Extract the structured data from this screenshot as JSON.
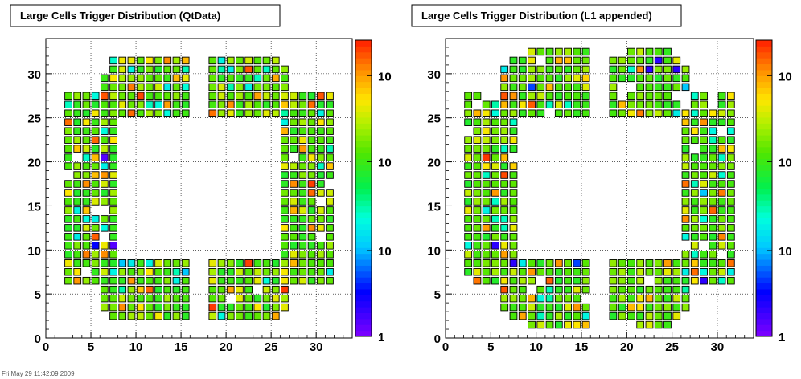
{
  "chart_data": [
    {
      "type": "heatmap",
      "title": "Large Cells Trigger Distribution (QtData)",
      "xlabel": "",
      "ylabel": "",
      "xlim": [
        0,
        34
      ],
      "ylim": [
        0,
        34
      ],
      "x_ticks": [
        0,
        5,
        10,
        15,
        20,
        25,
        30
      ],
      "y_ticks": [
        0,
        5,
        10,
        15,
        20,
        25,
        30
      ],
      "grid": true,
      "color_scale": "log",
      "colorbar_labels": [
        "1",
        "10",
        "10",
        "10",
        "10"
      ],
      "color_range": [
        0,
        1
      ],
      "cells": [
        [
          6,
          27,
          0.95
        ],
        [
          13,
          31,
          0.9
        ],
        [
          15,
          31,
          0.85
        ],
        [
          22,
          30,
          0.95
        ],
        [
          28,
          28,
          0.6
        ],
        [
          6,
          20,
          0.05
        ],
        [
          7,
          10,
          0.05
        ],
        [
          5,
          10,
          0.15
        ],
        [
          27,
          17,
          0.9
        ],
        [
          29,
          12,
          0.9
        ],
        [
          2,
          16,
          0.8
        ],
        [
          7,
          22,
          0.8
        ],
        [
          8,
          15,
          0.8
        ],
        [
          11,
          31,
          0.8
        ],
        [
          27,
          12,
          0.6
        ],
        [
          14,
          29,
          0.85
        ],
        [
          10,
          3,
          0.8
        ],
        [
          23,
          3,
          0.8
        ],
        [
          8,
          8,
          0.3
        ],
        [
          15,
          7,
          0.3
        ]
      ]
    },
    {
      "type": "heatmap",
      "title": "Large Cells Trigger Distribution (L1 appended)",
      "xlabel": "",
      "ylabel": "",
      "xlim": [
        0,
        34
      ],
      "ylim": [
        0,
        34
      ],
      "x_ticks": [
        0,
        5,
        10,
        15,
        20,
        25,
        30
      ],
      "y_ticks": [
        0,
        5,
        10,
        15,
        20,
        25,
        30
      ],
      "grid": true,
      "color_scale": "log",
      "colorbar_labels": [
        "1",
        "10",
        "10",
        "10",
        "10"
      ],
      "color_range": [
        0,
        1
      ],
      "cells": [
        [
          6,
          27,
          0.95
        ],
        [
          23,
          31,
          0.1
        ],
        [
          25,
          30,
          0.1
        ],
        [
          21,
          30,
          0.9
        ],
        [
          25,
          23,
          0.05
        ],
        [
          25,
          14,
          0.15
        ],
        [
          7,
          8,
          0.1
        ],
        [
          5,
          10,
          0.1
        ],
        [
          9,
          12,
          0.95
        ],
        [
          24,
          16,
          0.9
        ],
        [
          27,
          23,
          0.8
        ],
        [
          28,
          6,
          0.1
        ],
        [
          26,
          13,
          0.9
        ],
        [
          22,
          30,
          0.1
        ],
        [
          26,
          28,
          0.3
        ],
        [
          15,
          24,
          0.3
        ],
        [
          9,
          28,
          0.2
        ],
        [
          28,
          16,
          0.3
        ],
        [
          3,
          28,
          0.85
        ],
        [
          14,
          8,
          0.2
        ]
      ]
    }
  ],
  "footer": "Fri May 29 11:42:09 2009"
}
